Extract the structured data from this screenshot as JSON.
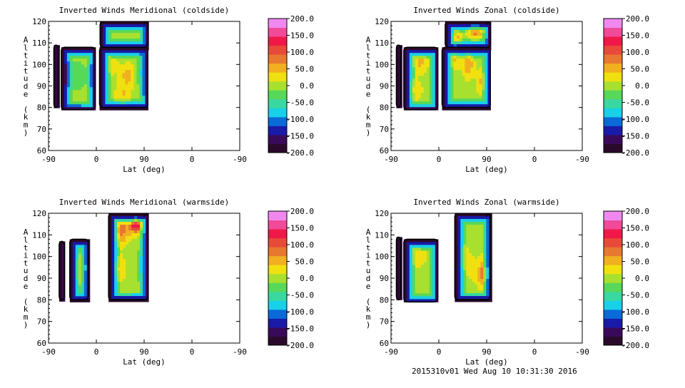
{
  "footer": "2015310v01 Wed Aug 10 10:31:30 2016",
  "colorbar": {
    "labels": [
      "200.0",
      "150.0",
      "100.0",
      "50.0",
      "0.0",
      "-50.0",
      "-100.0",
      "-150.0",
      "-200.0"
    ],
    "colors": [
      "#2a0a2a",
      "#3a0a5a",
      "#1a1aa8",
      "#0a6ad8",
      "#18d0e8",
      "#38d8a0",
      "#58d858",
      "#a8e030",
      "#f0e010",
      "#f0b020",
      "#e87830",
      "#e84a3a",
      "#f01848",
      "#f04a98",
      "#f088f0"
    ]
  },
  "chart_data": [
    {
      "type": "heatmap",
      "title": "Inverted Winds Meridional (coldside)",
      "xlabel": "Lat (deg)",
      "ylabel": "Altitude (km)",
      "xticks": [
        "-90",
        "0",
        "90",
        "0",
        "-90"
      ],
      "yticks": [
        "60",
        "70",
        "80",
        "90",
        "100",
        "110",
        "120"
      ],
      "ylim": [
        60,
        120
      ],
      "clim": [
        -200,
        200
      ],
      "segments": [
        [
          -80,
          -72
        ],
        [
          -66,
          -2
        ],
        [
          6,
          97
        ],
        [
          7,
          97
        ]
      ],
      "segment_alt": [
        [
          80,
          109
        ],
        [
          79,
          108
        ],
        [
          80,
          108
        ],
        [
          108,
          120
        ]
      ],
      "blobs": [
        [
          -40,
          95,
          25,
          7,
          -35
        ],
        [
          25,
          100,
          18,
          6,
          25
        ],
        [
          60,
          95,
          14,
          5,
          55
        ],
        [
          50,
          86,
          15,
          5,
          40
        ],
        [
          85,
          96,
          10,
          8,
          -45
        ]
      ]
    },
    {
      "type": "heatmap",
      "title": "Inverted Winds Zonal (coldside)",
      "xlabel": "Lat (deg)",
      "ylabel": "Altitude (km)",
      "xticks": [
        "-90",
        "0",
        "90",
        "0",
        "-90"
      ],
      "yticks": [
        "60",
        "70",
        "80",
        "90",
        "100",
        "110",
        "120"
      ],
      "ylim": [
        60,
        120
      ],
      "clim": [
        -200,
        200
      ],
      "segments": [
        [
          -80,
          -72
        ],
        [
          -66,
          -2
        ],
        [
          6,
          97
        ],
        [
          12,
          97
        ]
      ],
      "segment_alt": [
        [
          80,
          109
        ],
        [
          79,
          108
        ],
        [
          80,
          108
        ],
        [
          108,
          120
        ]
      ],
      "blobs": [
        [
          -55,
          88,
          20,
          5,
          60
        ],
        [
          -35,
          101,
          15,
          5,
          45
        ],
        [
          30,
          108,
          12,
          8,
          75
        ],
        [
          55,
          100,
          10,
          6,
          70
        ],
        [
          70,
          117,
          15,
          4,
          120
        ],
        [
          80,
          92,
          10,
          6,
          45
        ]
      ]
    },
    {
      "type": "heatmap",
      "title": "Inverted Winds Meridional (warmside)",
      "xlabel": "Lat (deg)",
      "ylabel": "Altitude (km)",
      "xticks": [
        "-90",
        "0",
        "90",
        "0",
        "-90"
      ],
      "yticks": [
        "60",
        "70",
        "80",
        "90",
        "100",
        "110",
        "120"
      ],
      "ylim": [
        60,
        120
      ],
      "clim": [
        -200,
        200
      ],
      "segments": [
        [
          -70,
          -60
        ],
        [
          -50,
          -15
        ],
        [
          23,
          97
        ]
      ],
      "segment_alt": [
        [
          80,
          107
        ],
        [
          80,
          108
        ],
        [
          80,
          120
        ]
      ],
      "blobs": [
        [
          -40,
          94,
          12,
          7,
          55
        ],
        [
          -20,
          95,
          10,
          7,
          45
        ],
        [
          45,
          112,
          18,
          6,
          85
        ],
        [
          75,
          115,
          12,
          4,
          150
        ],
        [
          40,
          94,
          15,
          6,
          50
        ],
        [
          85,
          96,
          10,
          8,
          -40
        ]
      ]
    },
    {
      "type": "heatmap",
      "title": "Inverted Winds Zonal (warmside)",
      "xlabel": "Lat (deg)",
      "ylabel": "Altitude (km)",
      "xticks": [
        "-90",
        "0",
        "90",
        "0",
        "-90"
      ],
      "yticks": [
        "60",
        "70",
        "80",
        "90",
        "100",
        "110",
        "120"
      ],
      "ylim": [
        60,
        120
      ],
      "clim": [
        -200,
        200
      ],
      "segments": [
        [
          -80,
          -72
        ],
        [
          -66,
          -2
        ],
        [
          30,
          97
        ]
      ],
      "segment_alt": [
        [
          80,
          109
        ],
        [
          79,
          108
        ],
        [
          80,
          120
        ]
      ],
      "blobs": [
        [
          -40,
          100,
          18,
          6,
          30
        ],
        [
          40,
          100,
          12,
          6,
          60
        ],
        [
          85,
          92,
          12,
          7,
          85
        ],
        [
          60,
          95,
          12,
          8,
          20
        ]
      ]
    }
  ]
}
